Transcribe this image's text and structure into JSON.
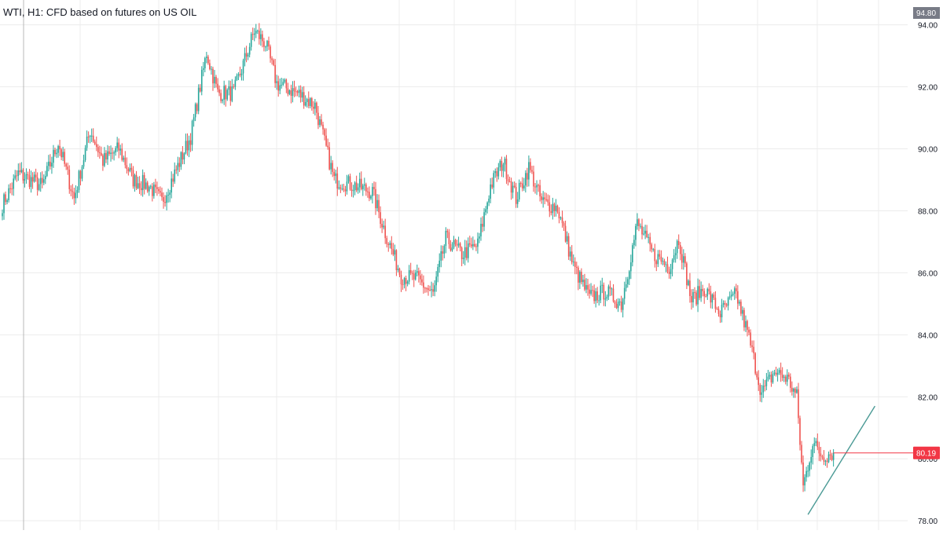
{
  "title": "WTI, H1: CFD based on futures on US OIL",
  "colors": {
    "up": "#26a69a",
    "down": "#ef5350",
    "grid": "#ececec",
    "axis_text": "#131722",
    "price_line": "#f23645",
    "trendline": "#4a9a95",
    "top_badge": "#787b86"
  },
  "chart_data": {
    "type": "candlestick",
    "interval": "H1",
    "symbol": "WTI",
    "ylim": [
      77.7,
      94.8
    ],
    "y_ticks": [
      78,
      80,
      82,
      84,
      86,
      88,
      90,
      92,
      94
    ],
    "y_tick_labels": [
      "78.00",
      "80.00",
      "82.00",
      "84.00",
      "86.00",
      "88.00",
      "90.00",
      "92.00",
      "94.00"
    ],
    "top_label": "94.80",
    "last_price": 80.19,
    "last_price_label": "80.19",
    "grid": true,
    "anchors": [
      [
        0,
        88.2
      ],
      [
        10,
        89.2
      ],
      [
        25,
        88.8
      ],
      [
        35,
        90.2
      ],
      [
        45,
        88.4
      ],
      [
        55,
        90.6
      ],
      [
        63,
        89.6
      ],
      [
        73,
        90.0
      ],
      [
        82,
        89.0
      ],
      [
        92,
        88.8
      ],
      [
        100,
        88.3
      ],
      [
        108,
        89.2
      ],
      [
        118,
        90.4
      ],
      [
        128,
        93.1
      ],
      [
        135,
        91.8
      ],
      [
        145,
        91.8
      ],
      [
        158,
        93.8
      ],
      [
        165,
        93.4
      ],
      [
        172,
        92.1
      ],
      [
        185,
        91.8
      ],
      [
        196,
        91.4
      ],
      [
        208,
        89.0
      ],
      [
        222,
        88.8
      ],
      [
        232,
        88.6
      ],
      [
        240,
        87.3
      ],
      [
        250,
        85.9
      ],
      [
        260,
        85.8
      ],
      [
        270,
        85.3
      ],
      [
        278,
        87.1
      ],
      [
        288,
        86.6
      ],
      [
        298,
        86.9
      ],
      [
        306,
        88.8
      ],
      [
        314,
        89.6
      ],
      [
        322,
        88.4
      ],
      [
        330,
        89.4
      ],
      [
        338,
        88.3
      ],
      [
        348,
        88.1
      ],
      [
        358,
        86.2
      ],
      [
        368,
        85.2
      ],
      [
        378,
        85.4
      ],
      [
        388,
        85.0
      ],
      [
        398,
        87.6
      ],
      [
        408,
        86.6
      ],
      [
        418,
        86.2
      ],
      [
        424,
        87.1
      ],
      [
        432,
        85.1
      ],
      [
        440,
        85.5
      ],
      [
        450,
        84.7
      ],
      [
        460,
        85.3
      ],
      [
        468,
        83.9
      ],
      [
        476,
        82.1
      ],
      [
        484,
        82.8
      ],
      [
        492,
        82.6
      ],
      [
        498,
        82.0
      ],
      [
        502,
        79.1
      ],
      [
        508,
        80.5
      ],
      [
        514,
        80.1
      ],
      [
        521,
        80.2
      ]
    ],
    "n_candles": 522,
    "trendline": {
      "from": {
        "bar": 505,
        "price": 78.2
      },
      "to": {
        "bar": 547,
        "price": 81.7
      }
    }
  }
}
